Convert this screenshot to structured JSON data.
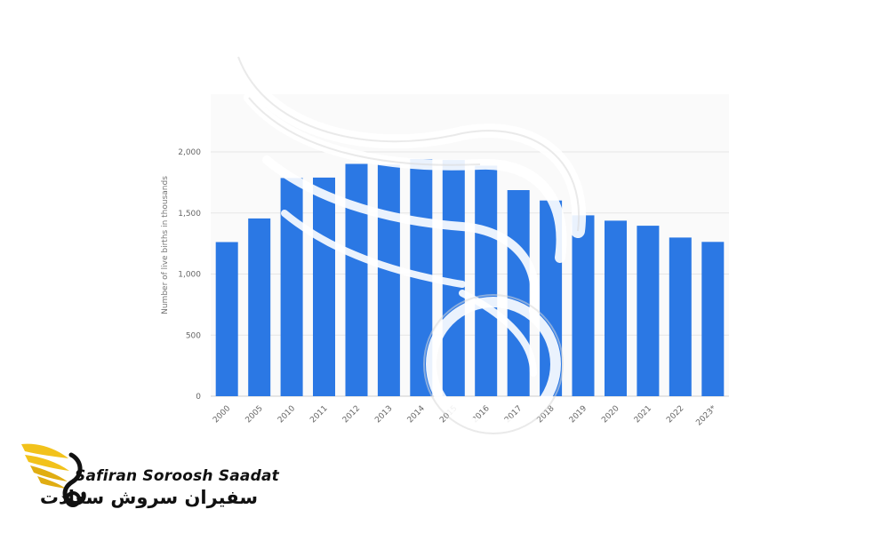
{
  "chart_data": {
    "type": "bar",
    "categories": [
      "2000",
      "2005",
      "2010",
      "2011",
      "2012",
      "2013",
      "2014",
      "2015",
      "2016",
      "2017",
      "2018",
      "2019",
      "2020",
      "2021",
      "2022",
      "2023*"
    ],
    "values": [
      1262,
      1455,
      1786,
      1790,
      1902,
      1897,
      1942,
      1934,
      1887,
      1687,
      1602,
      1481,
      1437,
      1396,
      1299,
      1263
    ],
    "ylabel": "Number of live births in thousands",
    "xlabel": "",
    "ylim": [
      0,
      2000
    ],
    "yticks": [
      0,
      500,
      1000,
      1500,
      2000
    ],
    "ytick_labels": [
      "0",
      "500",
      "1,000",
      "1,500",
      "2,000"
    ],
    "bar_color": "#2b78e4",
    "grid": true
  },
  "logo": {
    "name_en": "Safiran Soroosh Saadat",
    "name_fa": "سفیران سروش سعادت",
    "colors": {
      "wing": "#f2c21b",
      "text": "#111111"
    }
  }
}
